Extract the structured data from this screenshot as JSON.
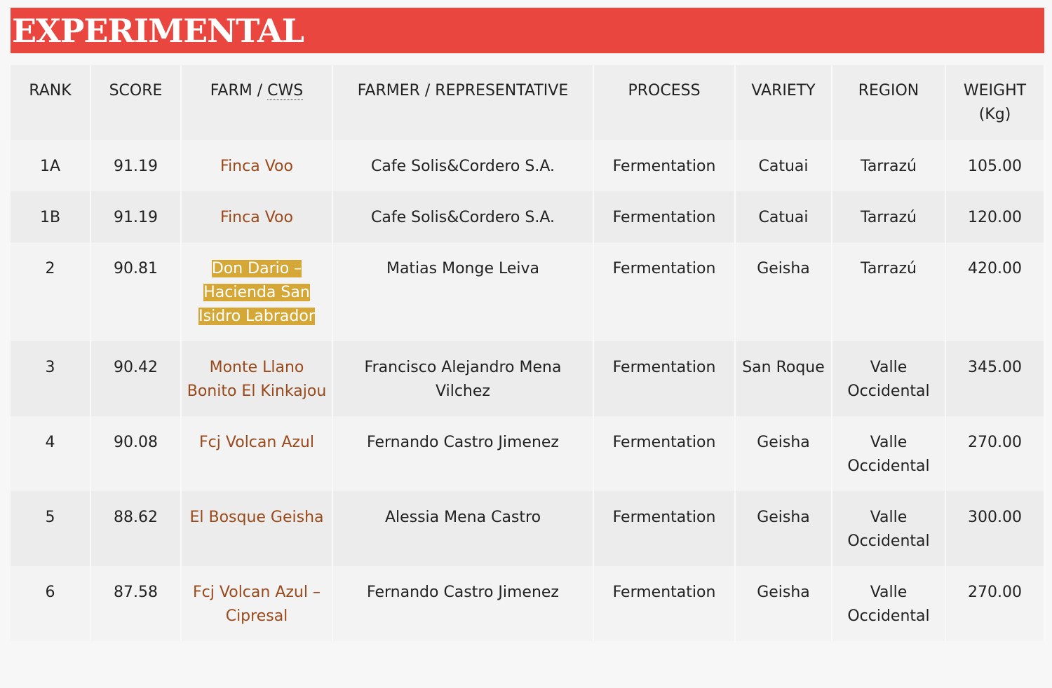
{
  "title": "EXPERIMENTAL",
  "headers": {
    "rank": "RANK",
    "score": "SCORE",
    "farm_a": "FARM / ",
    "farm_b": "CWS",
    "farmer": "FARMER / REPRESENTATIVE",
    "process": "PROCESS",
    "variety": "VARIETY",
    "region": "REGION",
    "weight": "WEIGHT (Kg)"
  },
  "rows": [
    {
      "rank": "1A",
      "score": "91.19",
      "farm": "Finca Voo",
      "farmer": "Cafe Solis&Cordero S.A.",
      "process": "Fermentation",
      "variety": "Catuai",
      "region": "Tarrazú",
      "weight": "105.00"
    },
    {
      "rank": "1B",
      "score": "91.19",
      "farm": "Finca Voo",
      "farmer": "Cafe Solis&Cordero S.A.",
      "process": "Fermentation",
      "variety": "Catuai",
      "region": "Tarrazú",
      "weight": "120.00"
    },
    {
      "rank": "2",
      "score": "90.81",
      "farm": "Don Dario – Hacienda San Isidro Labrador",
      "farmer": "Matias Monge Leiva",
      "process": "Fermentation",
      "variety": "Geisha",
      "region": "Tarrazú",
      "weight": "420.00",
      "highlighted": true
    },
    {
      "rank": "3",
      "score": "90.42",
      "farm": "Monte Llano Bonito El Kinkajou",
      "farmer": "Francisco Alejandro Mena Vilchez",
      "process": "Fermentation",
      "variety": "San Roque",
      "region": "Valle Occidental",
      "weight": "345.00"
    },
    {
      "rank": "4",
      "score": "90.08",
      "farm": "Fcj Volcan Azul",
      "farmer": "Fernando Castro Jimenez",
      "process": "Fermentation",
      "variety": "Geisha",
      "region": "Valle Occidental",
      "weight": "270.00"
    },
    {
      "rank": "5",
      "score": "88.62",
      "farm": "El Bosque Geisha",
      "farmer": "Alessia Mena Castro",
      "process": "Fermentation",
      "variety": "Geisha",
      "region": "Valle Occidental",
      "weight": "300.00"
    },
    {
      "rank": "6",
      "score": "87.58",
      "farm": "Fcj Volcan Azul – Cipresal",
      "farmer": "Fernando Castro Jimenez",
      "process": "Fermentation",
      "variety": "Geisha",
      "region": "Valle Occidental",
      "weight": "270.00"
    }
  ],
  "colors": {
    "banner": "#e94640",
    "farm_link": "#9a4a1a",
    "highlight": "#d4a736"
  }
}
